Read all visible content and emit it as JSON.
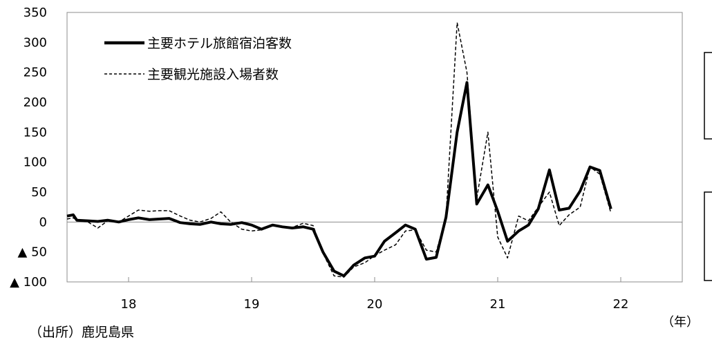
{
  "chart_data": {
    "type": "line",
    "title": "",
    "xlabel": "（年）",
    "ylabel": "",
    "ylim": [
      -100,
      350
    ],
    "y_ticks": [
      {
        "value": 350,
        "label": "350"
      },
      {
        "value": 300,
        "label": "300"
      },
      {
        "value": 250,
        "label": "250"
      },
      {
        "value": 200,
        "label": "200"
      },
      {
        "value": 150,
        "label": "150"
      },
      {
        "value": 100,
        "label": "100"
      },
      {
        "value": 50,
        "label": "50"
      },
      {
        "value": 0,
        "label": "0"
      },
      {
        "value": -50,
        "label": "▲ 50"
      },
      {
        "value": -100,
        "label": "▲ 100"
      }
    ],
    "x_start": 2017.5,
    "x_end": 2022.5,
    "year_boundaries": [
      2018,
      2019,
      2020,
      2021,
      2022
    ],
    "x_ticks": [
      {
        "value": 2018.0,
        "label": "18"
      },
      {
        "value": 2019.0,
        "label": "19"
      },
      {
        "value": 2020.0,
        "label": "20"
      },
      {
        "value": 2021.0,
        "label": "21"
      },
      {
        "value": 2022.0,
        "label": "22"
      }
    ],
    "series": [
      {
        "name": "主要ホテル旅館宿泊客数",
        "style": "solid",
        "points": [
          [
            2017.5,
            10
          ],
          [
            2017.55,
            12
          ],
          [
            2017.58,
            3
          ],
          [
            2017.67,
            2
          ],
          [
            2017.75,
            1
          ],
          [
            2017.83,
            3
          ],
          [
            2017.92,
            0
          ],
          [
            2018.0,
            4
          ],
          [
            2018.08,
            7
          ],
          [
            2018.17,
            4
          ],
          [
            2018.25,
            5
          ],
          [
            2018.33,
            6
          ],
          [
            2018.42,
            -1
          ],
          [
            2018.5,
            -3
          ],
          [
            2018.58,
            -4
          ],
          [
            2018.67,
            0
          ],
          [
            2018.75,
            -3
          ],
          [
            2018.83,
            -4
          ],
          [
            2018.92,
            -1
          ],
          [
            2019.0,
            -5
          ],
          [
            2019.08,
            -12
          ],
          [
            2019.17,
            -5
          ],
          [
            2019.25,
            -8
          ],
          [
            2019.33,
            -10
          ],
          [
            2019.42,
            -8
          ],
          [
            2019.5,
            -12
          ],
          [
            2019.58,
            -50
          ],
          [
            2019.67,
            -82
          ],
          [
            2019.75,
            -90
          ],
          [
            2019.83,
            -72
          ],
          [
            2019.92,
            -60
          ],
          [
            2020.0,
            -57
          ],
          [
            2020.08,
            -32
          ],
          [
            2020.17,
            -18
          ],
          [
            2020.25,
            -5
          ],
          [
            2020.33,
            -12
          ],
          [
            2020.42,
            -62
          ],
          [
            2020.5,
            -59
          ],
          [
            2020.58,
            8
          ],
          [
            2020.67,
            150
          ],
          [
            2020.75,
            233
          ],
          [
            2020.83,
            30
          ],
          [
            2020.92,
            62
          ],
          [
            2021.0,
            18
          ],
          [
            2021.08,
            -32
          ],
          [
            2021.17,
            -15
          ],
          [
            2021.25,
            -5
          ],
          [
            2021.33,
            22
          ],
          [
            2021.42,
            87
          ],
          [
            2021.5,
            20
          ],
          [
            2021.58,
            23
          ],
          [
            2021.67,
            52
          ],
          [
            2021.75,
            92
          ],
          [
            2021.83,
            86
          ],
          [
            2021.92,
            22
          ]
        ]
      },
      {
        "name": "主要観光施設入場者数",
        "style": "dashed",
        "points": [
          [
            2017.5,
            5
          ],
          [
            2017.55,
            7
          ],
          [
            2017.58,
            3
          ],
          [
            2017.67,
            0
          ],
          [
            2017.75,
            -10
          ],
          [
            2017.83,
            2
          ],
          [
            2017.92,
            0
          ],
          [
            2018.0,
            10
          ],
          [
            2018.08,
            20
          ],
          [
            2018.17,
            18
          ],
          [
            2018.25,
            19
          ],
          [
            2018.33,
            19
          ],
          [
            2018.42,
            10
          ],
          [
            2018.5,
            3
          ],
          [
            2018.58,
            0
          ],
          [
            2018.67,
            6
          ],
          [
            2018.75,
            17
          ],
          [
            2018.83,
            0
          ],
          [
            2018.92,
            -12
          ],
          [
            2019.0,
            -15
          ],
          [
            2019.08,
            -13
          ],
          [
            2019.17,
            -5
          ],
          [
            2019.25,
            -7
          ],
          [
            2019.33,
            -9
          ],
          [
            2019.42,
            -2
          ],
          [
            2019.5,
            -6
          ],
          [
            2019.58,
            -52
          ],
          [
            2019.67,
            -90
          ],
          [
            2019.75,
            -92
          ],
          [
            2019.83,
            -75
          ],
          [
            2019.92,
            -68
          ],
          [
            2020.0,
            -56
          ],
          [
            2020.08,
            -47
          ],
          [
            2020.17,
            -38
          ],
          [
            2020.25,
            -15
          ],
          [
            2020.33,
            -13
          ],
          [
            2020.42,
            -47
          ],
          [
            2020.5,
            -50
          ],
          [
            2020.58,
            8
          ],
          [
            2020.67,
            333
          ],
          [
            2020.75,
            250
          ],
          [
            2020.83,
            40
          ],
          [
            2020.92,
            150
          ],
          [
            2021.0,
            -25
          ],
          [
            2021.08,
            -60
          ],
          [
            2021.17,
            10
          ],
          [
            2021.25,
            2
          ],
          [
            2021.33,
            25
          ],
          [
            2021.42,
            50
          ],
          [
            2021.5,
            -6
          ],
          [
            2021.58,
            12
          ],
          [
            2021.67,
            25
          ],
          [
            2021.75,
            92
          ],
          [
            2021.83,
            80
          ],
          [
            2021.92,
            15
          ]
        ]
      }
    ]
  },
  "source_note": "（出所）鹿児島県"
}
